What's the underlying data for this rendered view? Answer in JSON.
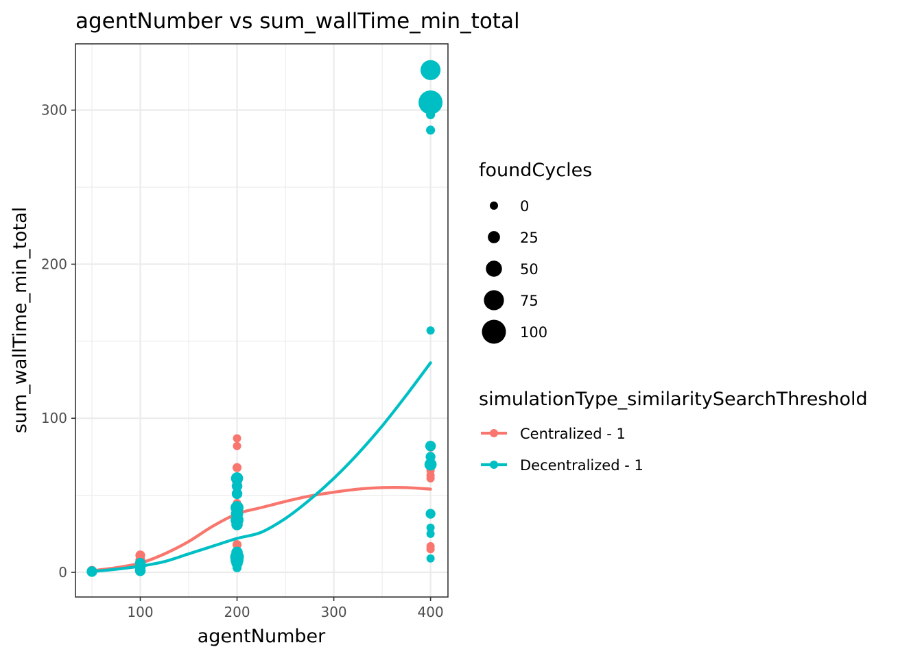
{
  "chart_data": {
    "type": "scatter",
    "title": "agentNumber  vs  sum_wallTime_min_total",
    "xlabel": "agentNumber",
    "ylabel": "sum_wallTime_min_total",
    "xlim": [
      33,
      418
    ],
    "ylim": [
      -16,
      343
    ],
    "x_ticks": [
      100,
      200,
      300,
      400
    ],
    "y_ticks": [
      0,
      100,
      200,
      300
    ],
    "x_tick_labels": [
      "100",
      "200",
      "300",
      "400"
    ],
    "y_tick_labels": [
      "0",
      "100",
      "200",
      "300"
    ],
    "grid": true,
    "size_legend": {
      "title": "foundCycles",
      "entries": [
        {
          "label": "0",
          "value": 0
        },
        {
          "label": "25",
          "value": 25
        },
        {
          "label": "50",
          "value": 50
        },
        {
          "label": "75",
          "value": 75
        },
        {
          "label": "100",
          "value": 100
        }
      ]
    },
    "color_legend": {
      "title": "simulationType_similaritySearchThreshold",
      "placement": "right"
    },
    "series": [
      {
        "name": "Centralized - 1",
        "color": "#F8766D",
        "points": [
          {
            "x": 50,
            "y": 1,
            "size": 10
          },
          {
            "x": 50,
            "y": 0.5,
            "size": 5
          },
          {
            "x": 100,
            "y": 11,
            "size": 10
          },
          {
            "x": 100,
            "y": 8,
            "size": 10
          },
          {
            "x": 100,
            "y": 6,
            "size": 5
          },
          {
            "x": 100,
            "y": 3,
            "size": 5
          },
          {
            "x": 200,
            "y": 87,
            "size": 0
          },
          {
            "x": 200,
            "y": 82,
            "size": 0
          },
          {
            "x": 200,
            "y": 68,
            "size": 5
          },
          {
            "x": 200,
            "y": 61,
            "size": 0
          },
          {
            "x": 200,
            "y": 59,
            "size": 10
          },
          {
            "x": 200,
            "y": 52,
            "size": 0
          },
          {
            "x": 200,
            "y": 45,
            "size": 0
          },
          {
            "x": 200,
            "y": 40,
            "size": 0
          },
          {
            "x": 200,
            "y": 36,
            "size": 0
          },
          {
            "x": 200,
            "y": 33,
            "size": 0
          },
          {
            "x": 200,
            "y": 30,
            "size": 0
          },
          {
            "x": 200,
            "y": 18,
            "size": 5
          },
          {
            "x": 200,
            "y": 11,
            "size": 10
          },
          {
            "x": 200,
            "y": 8,
            "size": 5
          },
          {
            "x": 400,
            "y": 81,
            "size": 0
          },
          {
            "x": 400,
            "y": 72,
            "size": 0
          },
          {
            "x": 400,
            "y": 68,
            "size": 0
          },
          {
            "x": 400,
            "y": 66,
            "size": 0
          },
          {
            "x": 400,
            "y": 63,
            "size": 0
          },
          {
            "x": 400,
            "y": 61,
            "size": 0
          },
          {
            "x": 400,
            "y": 17,
            "size": 0
          },
          {
            "x": 400,
            "y": 15,
            "size": 0
          }
        ],
        "smooth": [
          [
            50,
            1
          ],
          [
            75,
            3
          ],
          [
            100,
            6
          ],
          [
            125,
            12
          ],
          [
            150,
            20
          ],
          [
            175,
            30
          ],
          [
            200,
            38
          ],
          [
            225,
            42
          ],
          [
            250,
            46
          ],
          [
            275,
            49.5
          ],
          [
            300,
            52
          ],
          [
            325,
            54
          ],
          [
            350,
            55
          ],
          [
            375,
            55
          ],
          [
            400,
            54
          ]
        ]
      },
      {
        "name": "Decentralized - 1",
        "color": "#00BFC4",
        "points": [
          {
            "x": 50,
            "y": 0.5,
            "size": 15
          },
          {
            "x": 100,
            "y": 6,
            "size": 15
          },
          {
            "x": 100,
            "y": 3,
            "size": 15
          },
          {
            "x": 100,
            "y": 1,
            "size": 15
          },
          {
            "x": 200,
            "y": 61,
            "size": 25
          },
          {
            "x": 200,
            "y": 56,
            "size": 15
          },
          {
            "x": 200,
            "y": 51,
            "size": 15
          },
          {
            "x": 200,
            "y": 42,
            "size": 30
          },
          {
            "x": 200,
            "y": 38,
            "size": 25
          },
          {
            "x": 200,
            "y": 34,
            "size": 30
          },
          {
            "x": 200,
            "y": 31,
            "size": 20
          },
          {
            "x": 200,
            "y": 13,
            "size": 20
          },
          {
            "x": 200,
            "y": 10,
            "size": 35
          },
          {
            "x": 200,
            "y": 8,
            "size": 30
          },
          {
            "x": 200,
            "y": 6,
            "size": 20
          },
          {
            "x": 200,
            "y": 3,
            "size": 5
          },
          {
            "x": 400,
            "y": 326,
            "size": 75
          },
          {
            "x": 400,
            "y": 305,
            "size": 100
          },
          {
            "x": 400,
            "y": 297,
            "size": 5
          },
          {
            "x": 400,
            "y": 287,
            "size": 5
          },
          {
            "x": 400,
            "y": 157,
            "size": 0
          },
          {
            "x": 400,
            "y": 82,
            "size": 15
          },
          {
            "x": 400,
            "y": 75,
            "size": 10
          },
          {
            "x": 400,
            "y": 70,
            "size": 25
          },
          {
            "x": 400,
            "y": 38,
            "size": 10
          },
          {
            "x": 400,
            "y": 29,
            "size": 0
          },
          {
            "x": 400,
            "y": 25,
            "size": 0
          },
          {
            "x": 400,
            "y": 9,
            "size": 0
          }
        ],
        "smooth": [
          [
            50,
            0.5
          ],
          [
            75,
            2
          ],
          [
            100,
            4
          ],
          [
            125,
            7
          ],
          [
            150,
            12
          ],
          [
            175,
            17
          ],
          [
            200,
            22
          ],
          [
            225,
            26
          ],
          [
            250,
            35
          ],
          [
            275,
            47
          ],
          [
            300,
            61
          ],
          [
            325,
            77
          ],
          [
            350,
            95
          ],
          [
            375,
            115
          ],
          [
            400,
            136
          ]
        ]
      }
    ]
  }
}
